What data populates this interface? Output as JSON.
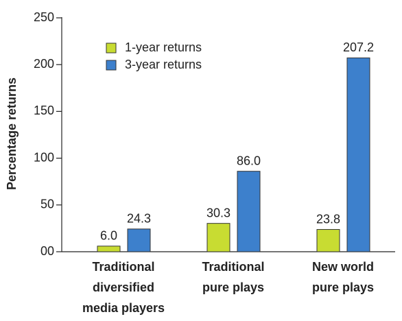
{
  "chart_data": {
    "type": "bar",
    "y_label": "Percentage returns",
    "categories": [
      "Traditional\ndiversified\nmedia players",
      "Traditional\npure plays",
      "New world\npure plays"
    ],
    "series": [
      {
        "name": "1-year returns",
        "color": "#c8dc32",
        "values": [
          6,
          30.3,
          23.8
        ],
        "value_labels": [
          "6.0",
          "30.3",
          "23.8"
        ]
      },
      {
        "name": "3-year returns",
        "color": "#3d80cc",
        "values": [
          24.3,
          86,
          207.2
        ],
        "value_labels": [
          "24.3",
          "86.0",
          "207.2"
        ]
      }
    ],
    "ylim": [
      0,
      250
    ],
    "yticks": [
      {
        "value": 0,
        "label": "00"
      },
      50,
      100,
      150,
      200,
      250
    ]
  }
}
